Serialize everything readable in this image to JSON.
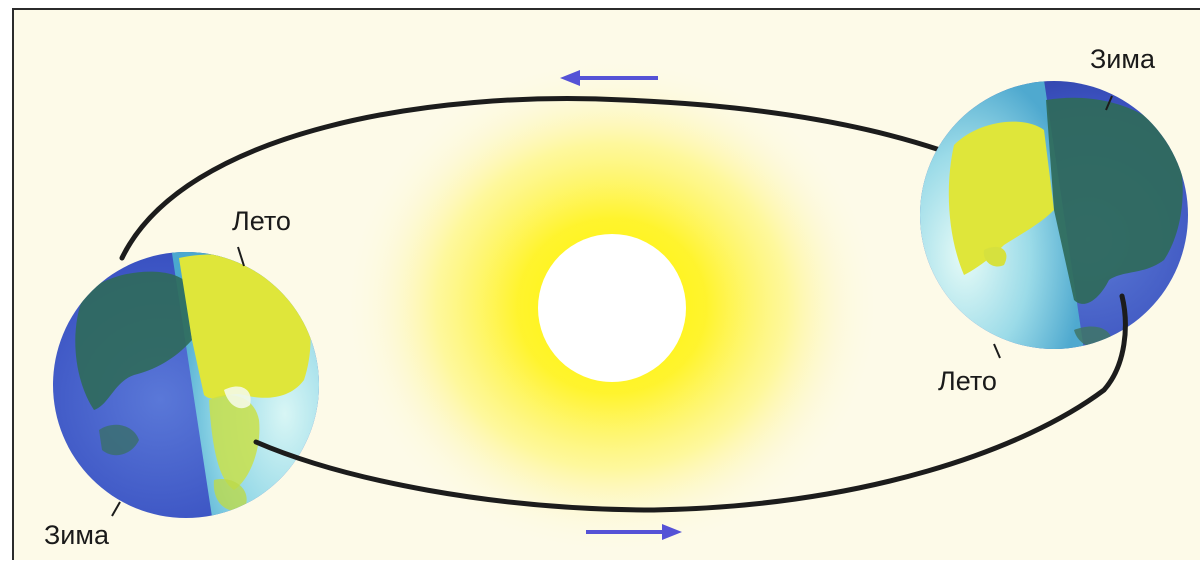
{
  "labels": {
    "left_summer": "Лето",
    "left_winter": "Зима",
    "right_winter": "Зима",
    "right_summer": "Лето"
  },
  "colors": {
    "background": "#fdfae8",
    "sun_core": "#ffffff",
    "sun_glow": "#fff23a",
    "orbit": "#1c1c1c",
    "arrow": "#5552d6",
    "earth_ocean_day": "#a9e3ee",
    "earth_ocean_night": "#3a55c8",
    "earth_land_day": "#dfe63a",
    "earth_land_night": "#2f6a5a"
  }
}
